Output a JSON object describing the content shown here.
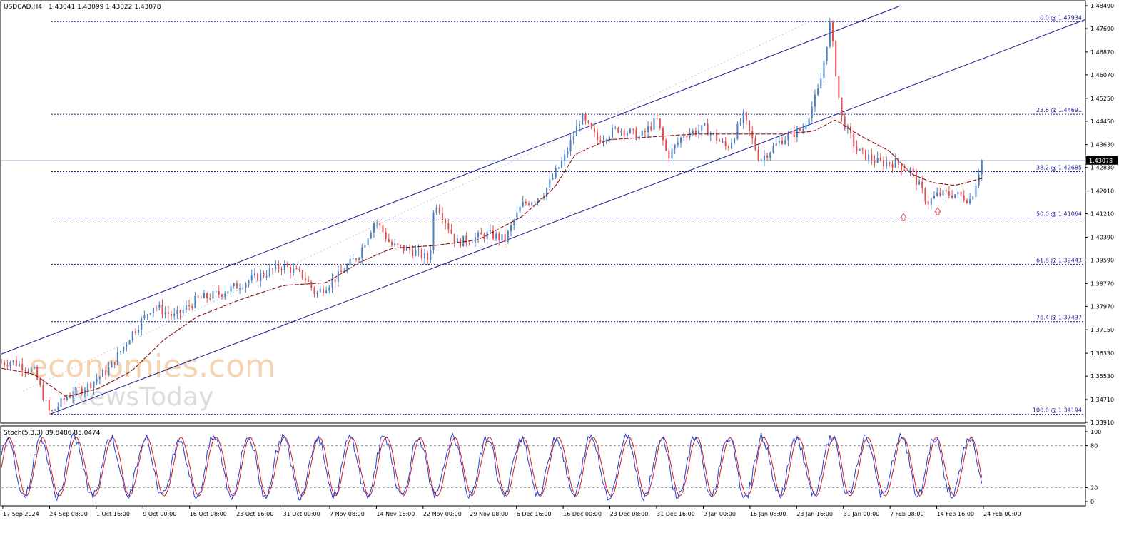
{
  "header": {
    "symbol": "USDCAD,H4",
    "ohlc": "1.43041 1.43099 1.43022 1.43078"
  },
  "watermark": {
    "line1": "economies.com",
    "line2": "NewsToday"
  },
  "colors": {
    "bull_candle": "#4a7fc1",
    "bear_candle": "#e05050",
    "ma_line": "#8b1a1a",
    "channel": "#1a1a8c",
    "fib": "#1a1a8c",
    "stoch_main": "#1e3fd0",
    "stoch_signal": "#d01e1e",
    "price_line": "#b0c8e0"
  },
  "chart_data": {
    "type": "line",
    "title": "USDCAD,H4",
    "price_axis": {
      "min": 1.3391,
      "max": 1.4849,
      "ticks": [
        "1.48490",
        "1.47690",
        "1.46870",
        "1.46070",
        "1.45250",
        "1.44450",
        "1.43630",
        "1.42830",
        "1.42010",
        "1.41210",
        "1.40390",
        "1.39590",
        "1.38770",
        "1.37970",
        "1.37150",
        "1.36330",
        "1.35530",
        "1.34710",
        "1.33910"
      ],
      "current_price": "1.43078"
    },
    "x_axis": {
      "labels": [
        "17 Sep 2024",
        "24 Sep 08:00",
        "1 Oct 16:00",
        "9 Oct 00:00",
        "16 Oct 08:00",
        "23 Oct 16:00",
        "31 Oct 00:00",
        "7 Nov 08:00",
        "14 Nov 16:00",
        "22 Nov 00:00",
        "29 Nov 08:00",
        "6 Dec 16:00",
        "16 Dec 00:00",
        "23 Dec 08:00",
        "31 Dec 16:00",
        "9 Jan 00:00",
        "16 Jan 08:00",
        "23 Jan 16:00",
        "31 Jan 00:00",
        "7 Feb 08:00",
        "14 Feb 16:00",
        "24 Feb 00:00"
      ]
    },
    "price_path": [
      [
        0,
        1.36
      ],
      [
        0.01,
        1.3605
      ],
      [
        0.03,
        1.357
      ],
      [
        0.045,
        1.342
      ],
      [
        0.06,
        1.348
      ],
      [
        0.08,
        1.352
      ],
      [
        0.1,
        1.358
      ],
      [
        0.12,
        1.37
      ],
      [
        0.14,
        1.38
      ],
      [
        0.16,
        1.376
      ],
      [
        0.18,
        1.382
      ],
      [
        0.2,
        1.384
      ],
      [
        0.23,
        1.389
      ],
      [
        0.26,
        1.394
      ],
      [
        0.28,
        1.39
      ],
      [
        0.29,
        1.384
      ],
      [
        0.31,
        1.39
      ],
      [
        0.33,
        1.398
      ],
      [
        0.345,
        1.41
      ],
      [
        0.36,
        1.401
      ],
      [
        0.38,
        1.399
      ],
      [
        0.395,
        1.396
      ],
      [
        0.4,
        1.417
      ],
      [
        0.42,
        1.402
      ],
      [
        0.45,
        1.405
      ],
      [
        0.465,
        1.403
      ],
      [
        0.48,
        1.415
      ],
      [
        0.5,
        1.419
      ],
      [
        0.52,
        1.432
      ],
      [
        0.535,
        1.446
      ],
      [
        0.55,
        1.438
      ],
      [
        0.57,
        1.442
      ],
      [
        0.59,
        1.439
      ],
      [
        0.605,
        1.445
      ],
      [
        0.615,
        1.432
      ],
      [
        0.63,
        1.44
      ],
      [
        0.65,
        1.442
      ],
      [
        0.67,
        1.435
      ],
      [
        0.685,
        1.446
      ],
      [
        0.7,
        1.431
      ],
      [
        0.72,
        1.438
      ],
      [
        0.74,
        1.442
      ],
      [
        0.755,
        1.456
      ],
      [
        0.765,
        1.479
      ],
      [
        0.775,
        1.446
      ],
      [
        0.79,
        1.434
      ],
      [
        0.81,
        1.43
      ],
      [
        0.825,
        1.43
      ],
      [
        0.84,
        1.427
      ],
      [
        0.855,
        1.416
      ],
      [
        0.865,
        1.419
      ],
      [
        0.88,
        1.419
      ],
      [
        0.895,
        1.417
      ],
      [
        0.905,
        1.4307
      ]
    ],
    "ma_path": [
      [
        0,
        1.358
      ],
      [
        0.03,
        1.356
      ],
      [
        0.06,
        1.348
      ],
      [
        0.09,
        1.351
      ],
      [
        0.12,
        1.357
      ],
      [
        0.15,
        1.368
      ],
      [
        0.18,
        1.376
      ],
      [
        0.22,
        1.382
      ],
      [
        0.26,
        1.387
      ],
      [
        0.3,
        1.388
      ],
      [
        0.33,
        1.395
      ],
      [
        0.36,
        1.4
      ],
      [
        0.4,
        1.401
      ],
      [
        0.44,
        1.403
      ],
      [
        0.48,
        1.411
      ],
      [
        0.51,
        1.421
      ],
      [
        0.53,
        1.433
      ],
      [
        0.56,
        1.438
      ],
      [
        0.6,
        1.439
      ],
      [
        0.64,
        1.44
      ],
      [
        0.68,
        1.44
      ],
      [
        0.72,
        1.44
      ],
      [
        0.75,
        1.441
      ],
      [
        0.77,
        1.445
      ],
      [
        0.79,
        1.44
      ],
      [
        0.82,
        1.434
      ],
      [
        0.84,
        1.426
      ],
      [
        0.86,
        1.423
      ],
      [
        0.88,
        1.422
      ],
      [
        0.905,
        1.4245
      ]
    ],
    "fib_levels": [
      {
        "label": "0.0 @ 1.47934",
        "price": 1.47934
      },
      {
        "label": "23.6 @ 1.44691",
        "price": 1.44691
      },
      {
        "label": "38.2 @ 1.42685",
        "price": 1.42685
      },
      {
        "label": "50.0 @ 1.41064",
        "price": 1.41064
      },
      {
        "label": "61.8 @ 1.39443",
        "price": 1.39443
      },
      {
        "label": "76.4 @ 1.37437",
        "price": 1.37437
      },
      {
        "label": "100.0 @ 1.34194",
        "price": 1.34194
      }
    ],
    "channel": {
      "upper": [
        [
          0,
          1.363
        ],
        [
          0.83,
          1.4849
        ]
      ],
      "lower": [
        [
          0.045,
          1.342
        ],
        [
          1.0,
          1.48
        ]
      ]
    },
    "oscillator": {
      "label": "Stoch(5,3,3) 89.8486 85.0474",
      "ticks": [
        "100",
        "80",
        "20",
        "0"
      ],
      "levels": [
        80,
        20
      ]
    }
  }
}
